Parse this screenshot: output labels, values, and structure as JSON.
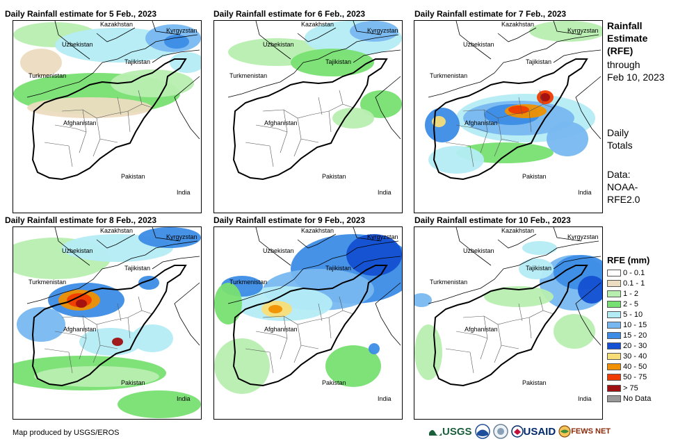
{
  "panels": [
    {
      "title": "Daily Rainfall estimate for 5 Feb., 2023",
      "intensity": "light"
    },
    {
      "title": "Daily Rainfall estimate for 6 Feb., 2023",
      "intensity": "light"
    },
    {
      "title": "Daily Rainfall estimate for 7 Feb., 2023",
      "intensity": "moderate"
    },
    {
      "title": "Daily Rainfall estimate for 8 Feb., 2023",
      "intensity": "heavy"
    },
    {
      "title": "Daily Rainfall estimate for 9 Feb., 2023",
      "intensity": "heavy-north"
    },
    {
      "title": "Daily Rainfall estimate for 10 Feb., 2023",
      "intensity": "east"
    }
  ],
  "country_labels": {
    "kazakhstan": "Kazakhstan",
    "kyrgyzstan": "Kyrgyzstan",
    "uzbekistan": "Uzbekistan",
    "tajikistan": "Tajikistan",
    "turkmenistan": "Turkmenistan",
    "afghanistan": "Afghanistan",
    "pakistan": "Pakistan",
    "india": "India"
  },
  "info": {
    "line1": "Rainfall",
    "line2": "Estimate",
    "line3": "(RFE)",
    "line4": "through",
    "line5": "Feb 10, 2023",
    "line6": "Daily",
    "line7": "Totals",
    "line8": "Data:",
    "line9": "NOAA-",
    "line10": "RFE2.0"
  },
  "legend": {
    "title": "RFE (mm)",
    "items": [
      {
        "label": "0 - 0.1",
        "color": "#ffffff"
      },
      {
        "label": "0.1 - 1",
        "color": "#ecdcc0"
      },
      {
        "label": "1 - 2",
        "color": "#b8eeb0"
      },
      {
        "label": "2 - 5",
        "color": "#78e072"
      },
      {
        "label": "5 - 10",
        "color": "#b4ecf6"
      },
      {
        "label": "10 - 15",
        "color": "#78b8f0"
      },
      {
        "label": "15 - 20",
        "color": "#3c8ce6"
      },
      {
        "label": "20 - 30",
        "color": "#1450d2"
      },
      {
        "label": "30 - 40",
        "color": "#f8de78"
      },
      {
        "label": "40 - 50",
        "color": "#f09000"
      },
      {
        "label": "50 - 75",
        "color": "#f03c00"
      },
      {
        "label": "> 75",
        "color": "#a01010"
      },
      {
        "label": "No Data",
        "color": "#999999"
      }
    ]
  },
  "credit": "Map produced by USGS/EROS",
  "logos": {
    "usgs": "USGS",
    "usaid": "USAID",
    "fewsnet": "FEWS NET"
  }
}
